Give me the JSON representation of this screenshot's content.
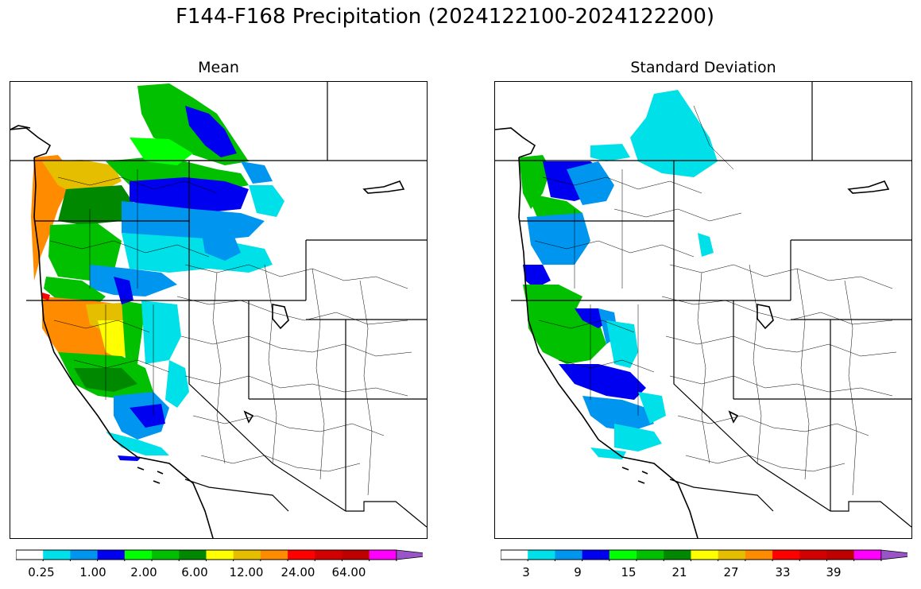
{
  "figure": {
    "title": "F144-F168 Precipitation (2024122100-2024122200)"
  },
  "panels": [
    {
      "title": "Mean",
      "colorbar": {
        "colors": [
          "#ffffff",
          "#00e0e8",
          "#0096f0",
          "#0000f0",
          "#00ff00",
          "#00c000",
          "#008800",
          "#ffff00",
          "#e6be00",
          "#ff8c00",
          "#ff0000",
          "#d20000",
          "#be0000",
          "#ff00ff",
          "#9955c8"
        ],
        "tick_labels": [
          "0.25",
          "1.00",
          "2.00",
          "6.00",
          "12.00",
          "24.00",
          "64.00"
        ]
      }
    },
    {
      "title": "Standard Deviation",
      "colorbar": {
        "colors": [
          "#ffffff",
          "#00e0e8",
          "#0096f0",
          "#0000f0",
          "#00ff00",
          "#00c000",
          "#008800",
          "#ffff00",
          "#e6be00",
          "#ff8c00",
          "#ff0000",
          "#d20000",
          "#be0000",
          "#ff00ff",
          "#9955c8"
        ],
        "tick_labels": [
          "3",
          "9",
          "15",
          "21",
          "27",
          "33",
          "39"
        ]
      }
    }
  ]
}
